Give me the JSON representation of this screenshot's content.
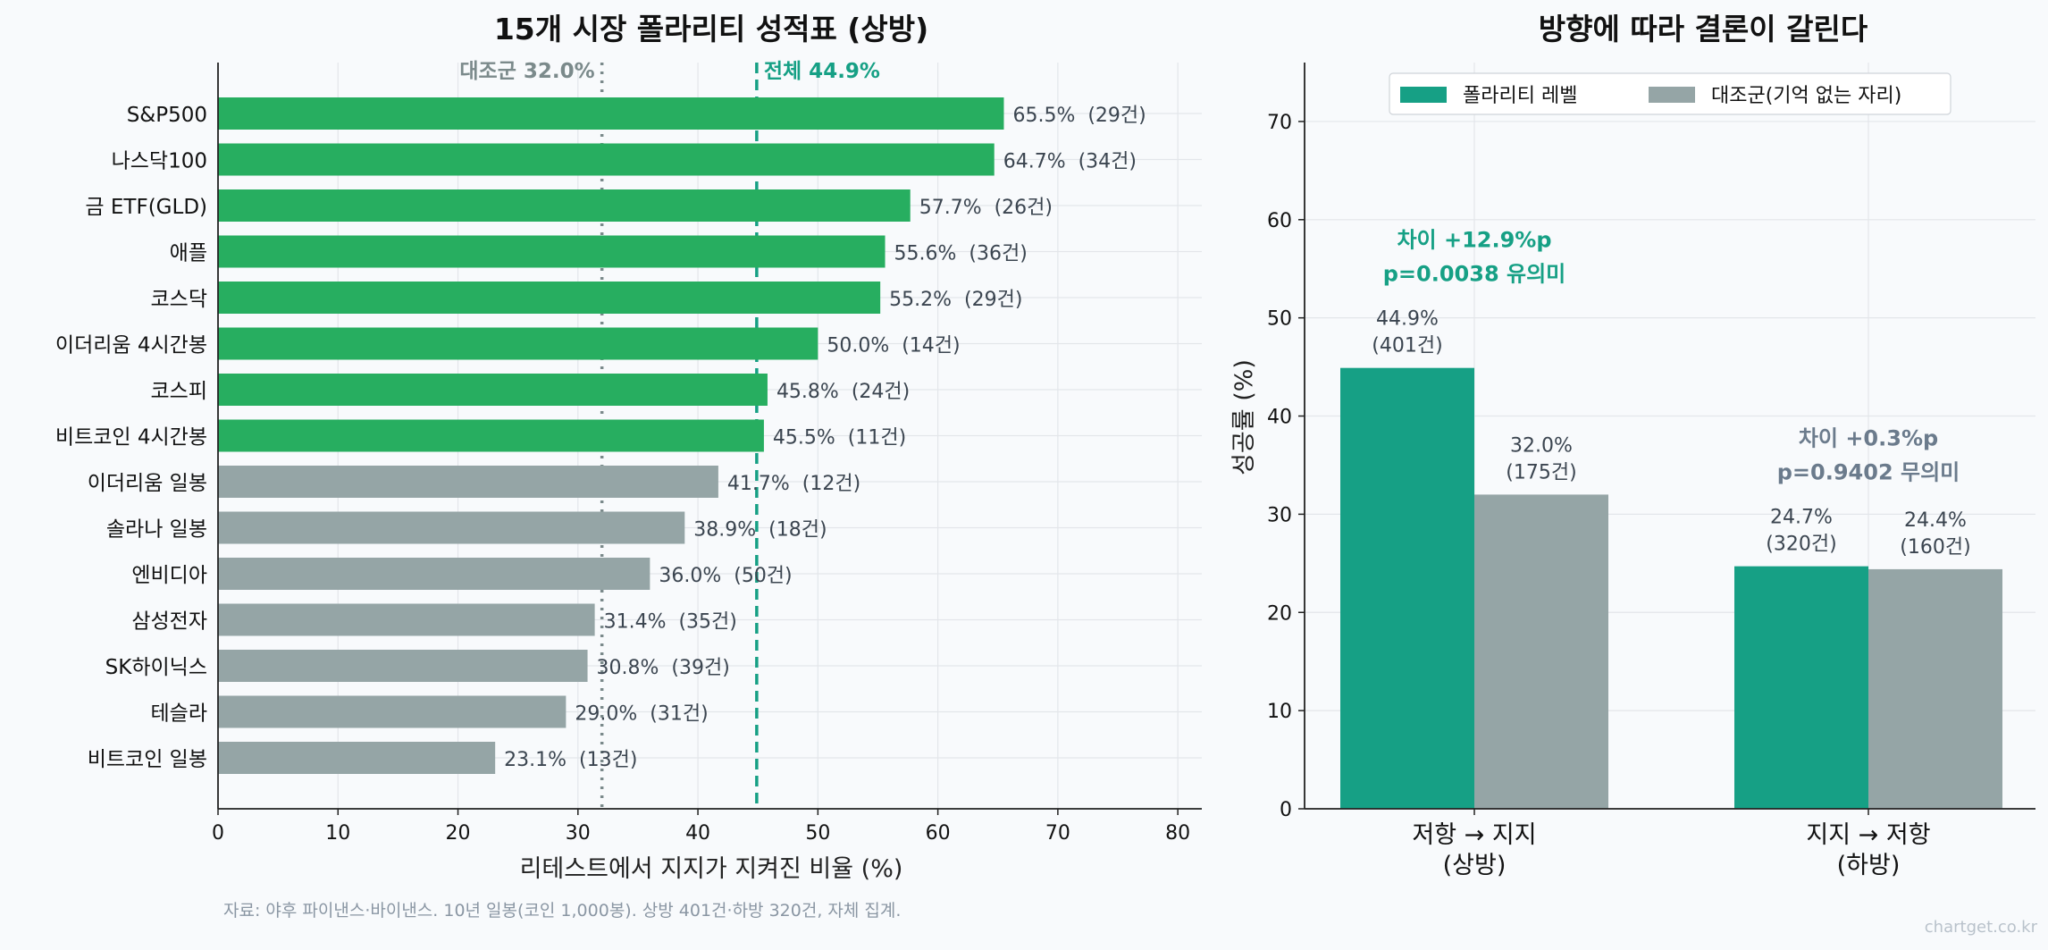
{
  "chart_data": [
    {
      "type": "bar",
      "orientation": "horizontal",
      "title": "15개 시장 폴라리티 성적표 (상방)",
      "xlabel": "리테스트에서 지지가 지켜진 비율 (%)",
      "ylabel": "",
      "xlim": [
        0,
        82
      ],
      "xticks": [
        0,
        10,
        20,
        30,
        40,
        50,
        60,
        70,
        80
      ],
      "grid": true,
      "categories": [
        "S&P500",
        "나스닥100",
        "금 ETF(GLD)",
        "애플",
        "코스닥",
        "이더리움 4시간봉",
        "코스피",
        "비트코인 4시간봉",
        "이더리움 일봉",
        "솔라나 일봉",
        "엔비디아",
        "삼성전자",
        "SK하이닉스",
        "테슬라",
        "비트코인 일봉"
      ],
      "values": [
        65.5,
        64.7,
        57.7,
        55.6,
        55.2,
        50.0,
        45.8,
        45.5,
        41.7,
        38.9,
        36.0,
        31.4,
        30.8,
        29.0,
        23.1
      ],
      "value_labels": [
        "65.5%",
        "64.7%",
        "57.7%",
        "55.6%",
        "55.2%",
        "50.0%",
        "45.8%",
        "45.5%",
        "41.7%",
        "38.9%",
        "36.0%",
        "31.4%",
        "30.8%",
        "29.0%",
        "23.1%"
      ],
      "count_labels": [
        "(29건)",
        "(34건)",
        "(26건)",
        "(36건)",
        "(29건)",
        "(14건)",
        "(24건)",
        "(11건)",
        "(12건)",
        "(18건)",
        "(50건)",
        "(35건)",
        "(39건)",
        "(31건)",
        "(13건)"
      ],
      "reference_lines": [
        {
          "label": "대조군 32.0%",
          "value": 32.0,
          "style": "dotted",
          "color": "#7b8a8b"
        },
        {
          "label": "전체 44.9%",
          "value": 44.9,
          "style": "dashed",
          "color": "#16a085"
        }
      ],
      "highlight_color": "#27ae60",
      "base_color": "#95a5a6",
      "highlight_threshold": 44.9
    },
    {
      "type": "bar",
      "title": "방향에 따라 결론이 갈린다",
      "xlabel": "",
      "ylabel": "성공률 (%)",
      "ylim": [
        0,
        76
      ],
      "yticks": [
        0,
        10,
        20,
        30,
        40,
        50,
        60,
        70
      ],
      "grid": true,
      "legend_position": "top-center",
      "categories": [
        "저항 → 지지\n(상방)",
        "지지 → 저항\n(하방)"
      ],
      "series": [
        {
          "name": "폴라리티 레벨",
          "color": "#16a085",
          "values": [
            44.9,
            24.7
          ],
          "labels": [
            "44.9%\n(401건)",
            "24.7%\n(320건)"
          ]
        },
        {
          "name": "대조군(기억 없는 자리)",
          "color": "#95a5a6",
          "values": [
            32.0,
            24.4
          ],
          "labels": [
            "32.0%\n(175건)",
            "24.4%\n(160건)"
          ]
        }
      ],
      "annotations": [
        {
          "text": "차이 +12.9%p\np=0.0038 유의미",
          "color": "#16a085"
        },
        {
          "text": "차이 +0.3%p\np=0.9402 무의미",
          "color": "#6b7b8c"
        }
      ]
    }
  ],
  "footer": {
    "source": "자료: 야후 파이낸스·바이낸스. 10년 일봉(코인 1,000봉). 상방 401건·하방 320건, 자체 집계.",
    "watermark": "chartget.co.kr"
  }
}
